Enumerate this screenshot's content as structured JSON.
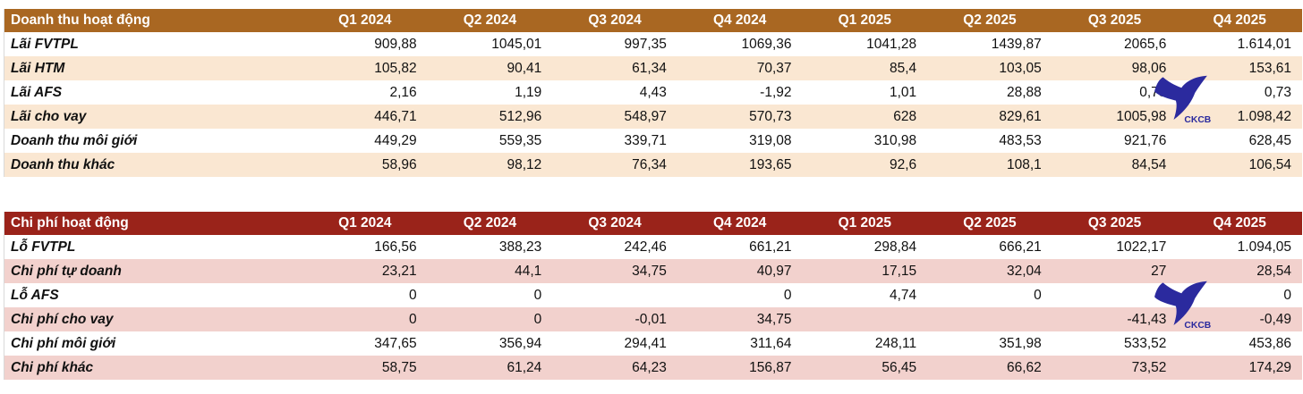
{
  "logo": {
    "text": "CKCB",
    "color": "#2B2A9E"
  },
  "tables": [
    {
      "title": "Doanh thu hoạt động",
      "header_bg": "#A96722",
      "stripe_bg": "#FAE7D2",
      "columns": [
        "Q1 2024",
        "Q2 2024",
        "Q3 2024",
        "Q4 2024",
        "Q1 2025",
        "Q2 2025",
        "Q3 2025",
        "Q4 2025"
      ],
      "rows": [
        {
          "label": "Lãi FVTPL",
          "values": [
            "909,88",
            "1045,01",
            "997,35",
            "1069,36",
            "1041,28",
            "1439,87",
            "2065,6",
            "1.614,01"
          ]
        },
        {
          "label": "Lãi HTM",
          "values": [
            "105,82",
            "90,41",
            "61,34",
            "70,37",
            "85,4",
            "103,05",
            "98,06",
            "153,61"
          ]
        },
        {
          "label": "Lãi AFS",
          "values": [
            "2,16",
            "1,19",
            "4,43",
            "-1,92",
            "1,01",
            "28,88",
            "0,73",
            "0,73"
          ]
        },
        {
          "label": "Lãi cho vay",
          "values": [
            "446,71",
            "512,96",
            "548,97",
            "570,73",
            "628",
            "829,61",
            "1005,98",
            "1.098,42"
          ]
        },
        {
          "label": "Doanh thu môi giới",
          "values": [
            "449,29",
            "559,35",
            "339,71",
            "319,08",
            "310,98",
            "483,53",
            "921,76",
            "628,45"
          ]
        },
        {
          "label": "Doanh thu khác",
          "values": [
            "58,96",
            "98,12",
            "76,34",
            "193,65",
            "92,6",
            "108,1",
            "84,54",
            "106,54"
          ]
        }
      ]
    },
    {
      "title": "Chi phí hoạt động",
      "header_bg": "#9A231A",
      "stripe_bg": "#F2D1CD",
      "columns": [
        "Q1 2024",
        "Q2 2024",
        "Q3 2024",
        "Q4 2024",
        "Q1 2025",
        "Q2 2025",
        "Q3 2025",
        "Q4 2025"
      ],
      "rows": [
        {
          "label": "Lỗ FVTPL",
          "values": [
            "166,56",
            "388,23",
            "242,46",
            "661,21",
            "298,84",
            "666,21",
            "1022,17",
            "1.094,05"
          ]
        },
        {
          "label": "Chi phí tự doanh",
          "values": [
            "23,21",
            "44,1",
            "34,75",
            "40,97",
            "17,15",
            "32,04",
            "27",
            "28,54"
          ]
        },
        {
          "label": "Lỗ AFS",
          "values": [
            "0",
            "0",
            "",
            "0",
            "4,74",
            "0",
            "0",
            "0"
          ]
        },
        {
          "label": "Chi phí cho vay",
          "values": [
            "0",
            "0",
            "-0,01",
            "34,75",
            "",
            "",
            "-41,43",
            "-0,49"
          ]
        },
        {
          "label": "Chi phí môi giới",
          "values": [
            "347,65",
            "356,94",
            "294,41",
            "311,64",
            "248,11",
            "351,98",
            "533,52",
            "453,86"
          ]
        },
        {
          "label": "Chi phí khác",
          "values": [
            "58,75",
            "61,24",
            "64,23",
            "156,87",
            "56,45",
            "66,62",
            "73,52",
            "174,29"
          ]
        }
      ]
    }
  ]
}
